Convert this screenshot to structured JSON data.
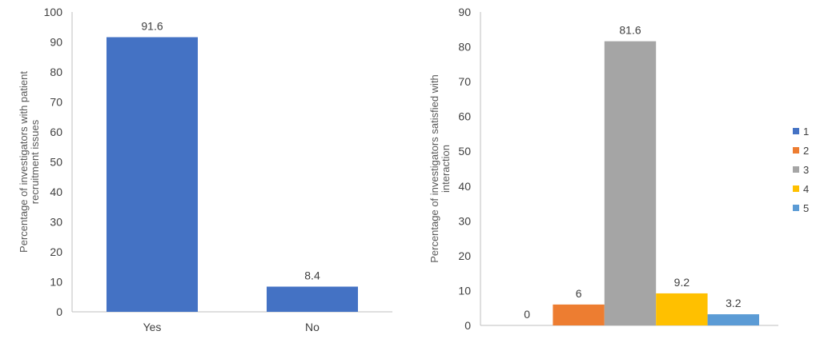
{
  "chart_data": [
    {
      "type": "bar",
      "categories": [
        "Yes",
        "No"
      ],
      "values": [
        91.6,
        8.4
      ],
      "data_labels": [
        "91.6",
        "8.4"
      ],
      "ylabel_lines": [
        "Percentage of investigators with patient",
        "recruitment issues"
      ],
      "ylim": [
        0,
        100
      ],
      "yticks": [
        0,
        10,
        20,
        30,
        40,
        50,
        60,
        70,
        80,
        90,
        100
      ],
      "color": "#4472C4",
      "grid": false
    },
    {
      "type": "bar",
      "categories": [
        "1",
        "2",
        "3",
        "4",
        "5"
      ],
      "series": [
        {
          "name": "1",
          "value": 0,
          "label": "0",
          "color": "#4472C4"
        },
        {
          "name": "2",
          "value": 6,
          "label": "6",
          "color": "#ED7D31"
        },
        {
          "name": "3",
          "value": 81.6,
          "label": "81.6",
          "color": "#A5A5A5"
        },
        {
          "name": "4",
          "value": 9.2,
          "label": "9.2",
          "color": "#FFC000"
        },
        {
          "name": "5",
          "value": 3.2,
          "label": "3.2",
          "color": "#5B9BD5"
        }
      ],
      "ylabel_lines": [
        "Percentage of investigators satisfied with",
        "interaction"
      ],
      "ylim": [
        0,
        90
      ],
      "yticks": [
        0,
        10,
        20,
        30,
        40,
        50,
        60,
        70,
        80,
        90
      ],
      "legend_position": "right",
      "grid": false
    }
  ]
}
